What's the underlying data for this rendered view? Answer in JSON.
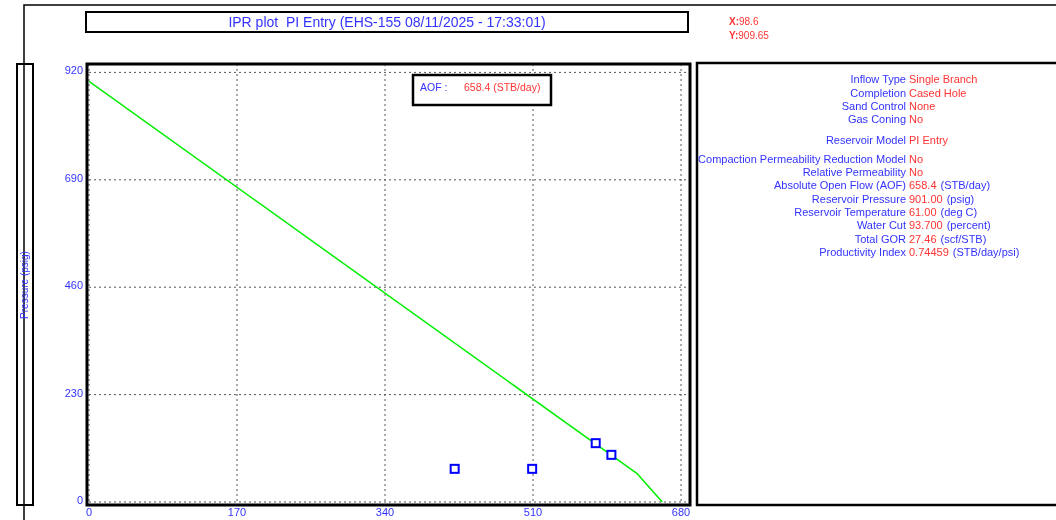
{
  "chart_data": {
    "type": "line",
    "title": "IPR plot  PI Entry (EHS-155 08/11/2025 - 17:33:01)",
    "ylabel": "Pressure  (psig)",
    "xlim": [
      0,
      688
    ],
    "ylim": [
      0,
      938
    ],
    "xticks": [
      0,
      170,
      340,
      510,
      680
    ],
    "yticks": [
      0,
      230,
      460,
      690,
      920
    ],
    "grid": true,
    "legend": false,
    "series": [
      {
        "type": "line",
        "color": "#00ee00",
        "x": [
          0,
          630,
          658.4
        ],
        "values": [
          901,
          60,
          0
        ],
        "marker": "none",
        "line_style": "solid"
      },
      {
        "type": "scatter",
        "color": "#0000ff",
        "x": [
          420,
          509,
          582,
          600
        ],
        "values": [
          71,
          71,
          126,
          101
        ],
        "marker": "square"
      }
    ],
    "annotations": [
      "X:",
      "98.6",
      "Y:",
      "909.65",
      "AOF :",
      "658.4 (STB/day)",
      "Inflow Type",
      "Single Branch",
      "Completion",
      "Cased Hole",
      "Sand Control",
      "None",
      "Gas Coning",
      "No",
      "Reservoir Model",
      "PI Entry",
      "Compaction Permeability Reduction Model",
      "No",
      "Relative Permeability",
      "No",
      "Absolute Open Flow (AOF)",
      "658.4",
      "(STB/day)",
      "Reservoir Pressure",
      "901.00",
      "(psig)",
      "Reservoir Temperature",
      "61.00",
      "(deg C)",
      "Water Cut",
      "93.700",
      "(percent)",
      "Total GOR",
      "27.46",
      "(scf/STB)",
      "Productivity Index",
      "0.74459",
      "(STB/day/psi)"
    ]
  }
}
